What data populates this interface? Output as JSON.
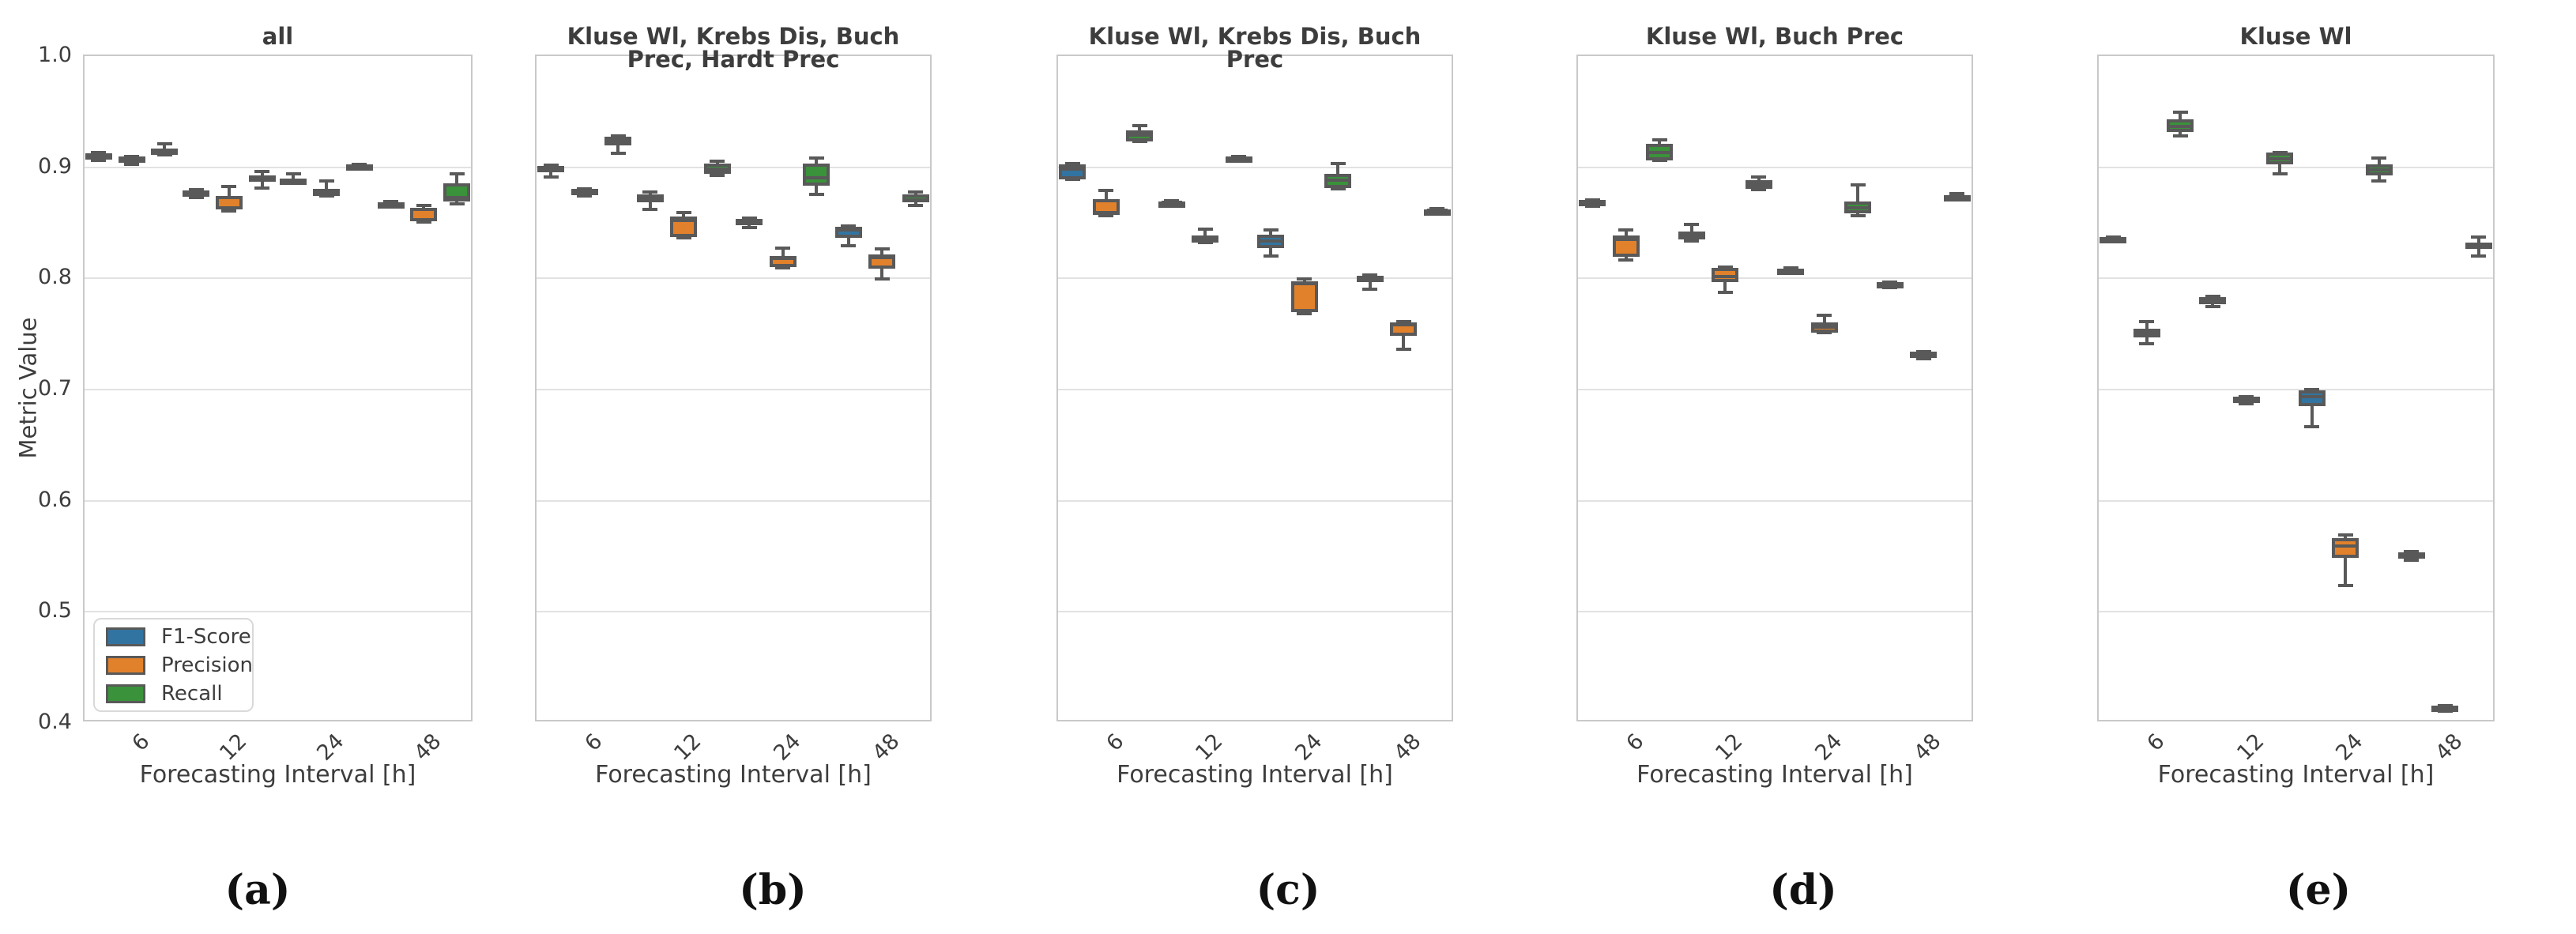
{
  "figure": {
    "ylabel": "Metric Value",
    "xlabel": "Forecasting Interval [h]",
    "yticks": [
      "1.0",
      "0.9",
      "0.8",
      "0.7",
      "0.6",
      "0.5",
      "0.4"
    ],
    "xticks": [
      "6",
      "12",
      "24",
      "48"
    ],
    "ylim": [
      0.4,
      1.0
    ],
    "grid_values": [
      0.9,
      0.8,
      0.7,
      0.6,
      0.5
    ],
    "legend": {
      "entries": [
        "F1-Score",
        "Precision",
        "Recall"
      ],
      "position": "lower-left of panel a"
    },
    "colors": {
      "F1-Score": "#3274a1",
      "Precision": "#e1812c",
      "Recall": "#3a923a",
      "box_edge": "#595959",
      "grid": "#e2e2e2",
      "spine": "#c9c9c9",
      "text": "#3d3d3d"
    }
  },
  "chart_data": [
    {
      "type": "boxplot",
      "id": "a",
      "title": "all",
      "caption": "(a)",
      "categories": [
        "6",
        "12",
        "24",
        "48"
      ],
      "box_format": "[whisker_low, q1, median, q3, whisker_high]",
      "series": [
        {
          "name": "F1-Score",
          "boxes": [
            [
              0.905,
              0.907,
              0.909,
              0.911,
              0.9115
            ],
            [
              0.8715,
              0.8745,
              0.8765,
              0.878,
              0.8785
            ],
            [
              0.884,
              0.8845,
              0.8865,
              0.8885,
              0.893
            ],
            [
              0.863,
              0.864,
              0.8655,
              0.867,
              0.8675
            ]
          ]
        },
        {
          "name": "Precision",
          "boxes": [
            [
              0.9015,
              0.9025,
              0.9045,
              0.908,
              0.9085
            ],
            [
              0.859,
              0.8605,
              0.871,
              0.8725,
              0.881
            ],
            [
              0.8725,
              0.873,
              0.876,
              0.8795,
              0.8865
            ],
            [
              0.8495,
              0.85,
              0.8605,
              0.862,
              0.8645
            ]
          ]
        },
        {
          "name": "Recall",
          "boxes": [
            [
              0.9095,
              0.911,
              0.9125,
              0.9155,
              0.9195
            ],
            [
              0.88,
              0.8865,
              0.888,
              0.8915,
              0.895
            ],
            [
              0.8975,
              0.898,
              0.899,
              0.901,
              0.9015
            ],
            [
              0.8655,
              0.868,
              0.871,
              0.884,
              0.893
            ]
          ]
        }
      ]
    },
    {
      "type": "boxplot",
      "id": "b",
      "title": "Kluse Wl, Krebs Dis, Buch Prec, Hardt Prec",
      "caption": "(b)",
      "categories": [
        "6",
        "12",
        "24",
        "48"
      ],
      "box_format": "[whisker_low, q1, median, q3, whisker_high]",
      "series": [
        {
          "name": "F1-Score",
          "boxes": [
            [
              0.89,
              0.894,
              0.8975,
              0.9,
              0.9005
            ],
            [
              0.861,
              0.867,
              0.87,
              0.874,
              0.876
            ],
            [
              0.844,
              0.847,
              0.85,
              0.852,
              0.8525
            ],
            [
              0.828,
              0.835,
              0.842,
              0.845,
              0.8455
            ]
          ]
        },
        {
          "name": "Precision",
          "boxes": [
            [
              0.8725,
              0.874,
              0.8775,
              0.879,
              0.8795
            ],
            [
              0.835,
              0.836,
              0.851,
              0.854,
              0.858
            ],
            [
              0.808,
              0.809,
              0.8165,
              0.819,
              0.826
            ],
            [
              0.798,
              0.807,
              0.8175,
              0.82,
              0.825
            ]
          ]
        },
        {
          "name": "Recall",
          "boxes": [
            [
              0.911,
              0.918,
              0.922,
              0.926,
              0.9265
            ],
            [
              0.891,
              0.893,
              0.897,
              0.902,
              0.904
            ],
            [
              0.874,
              0.882,
              0.889,
              0.902,
              0.907
            ],
            [
              0.864,
              0.867,
              0.869,
              0.874,
              0.876
            ]
          ]
        }
      ]
    },
    {
      "type": "boxplot",
      "id": "c",
      "title": "Kluse Wl, Krebs Dis, Buch Prec",
      "caption": "(c)",
      "categories": [
        "6",
        "12",
        "24",
        "48"
      ],
      "box_format": "[whisker_low, q1, median, q3, whisker_high]",
      "series": [
        {
          "name": "F1-Score",
          "boxes": [
            [
              0.8875,
              0.888,
              0.897,
              0.9015,
              0.902
            ],
            [
              0.8655,
              0.866,
              0.867,
              0.868,
              0.8685
            ],
            [
              0.819,
              0.826,
              0.832,
              0.838,
              0.842
            ],
            [
              0.789,
              0.795,
              0.799,
              0.801,
              0.8015
            ]
          ]
        },
        {
          "name": "Precision",
          "boxes": [
            [
              0.855,
              0.856,
              0.858,
              0.87,
              0.878
            ],
            [
              0.8305,
              0.831,
              0.833,
              0.837,
              0.843
            ],
            [
              0.767,
              0.768,
              0.794,
              0.796,
              0.798
            ],
            [
              0.735,
              0.747,
              0.757,
              0.759,
              0.7595
            ]
          ]
        },
        {
          "name": "Recall",
          "boxes": [
            [
              0.9215,
              0.922,
              0.9275,
              0.9315,
              0.936
            ],
            [
              0.9055,
              0.906,
              0.9065,
              0.908,
              0.9085
            ],
            [
              0.879,
              0.8795,
              0.887,
              0.893,
              0.902
            ],
            [
              0.8575,
              0.858,
              0.86,
              0.861,
              0.8615
            ]
          ]
        }
      ]
    },
    {
      "type": "boxplot",
      "id": "d",
      "title": "Kluse Wl, Buch Prec",
      "caption": "(d)",
      "categories": [
        "6",
        "12",
        "24",
        "48"
      ],
      "box_format": "[whisker_low, q1, median, q3, whisker_high]",
      "series": [
        {
          "name": "F1-Score",
          "boxes": [
            [
              0.8635,
              0.864,
              0.866,
              0.869,
              0.8695
            ],
            [
              0.832,
              0.834,
              0.837,
              0.841,
              0.847
            ],
            [
              0.803,
              0.8035,
              0.805,
              0.8075,
              0.808
            ],
            [
              0.7905,
              0.791,
              0.793,
              0.795,
              0.7955
            ]
          ]
        },
        {
          "name": "Precision",
          "boxes": [
            [
              0.815,
              0.818,
              0.834,
              0.837,
              0.842
            ],
            [
              0.786,
              0.795,
              0.8,
              0.808,
              0.8085
            ],
            [
              0.7495,
              0.75,
              0.755,
              0.759,
              0.7655
            ],
            [
              0.726,
              0.729,
              0.73,
              0.7325,
              0.733
            ]
          ]
        },
        {
          "name": "Recall",
          "boxes": [
            [
              0.9045,
              0.905,
              0.912,
              0.92,
              0.923
            ],
            [
              0.8785,
              0.879,
              0.883,
              0.887,
              0.89
            ],
            [
              0.855,
              0.857,
              0.862,
              0.8675,
              0.8825
            ],
            [
              0.8705,
              0.871,
              0.872,
              0.8735,
              0.875
            ]
          ]
        }
      ]
    },
    {
      "type": "boxplot",
      "id": "e",
      "title": "Kluse Wl",
      "caption": "(e)",
      "categories": [
        "6",
        "12",
        "24",
        "48"
      ],
      "box_format": "[whisker_low, q1, median, q3, whisker_high]",
      "series": [
        {
          "name": "F1-Score",
          "boxes": [
            [
              0.832,
              0.8325,
              0.834,
              0.8355,
              0.836
            ],
            [
              0.773,
              0.775,
              0.7785,
              0.782,
              0.7825
            ],
            [
              0.665,
              0.684,
              0.692,
              0.698,
              0.6985
            ],
            [
              0.545,
              0.548,
              0.549,
              0.552,
              0.553
            ]
          ]
        },
        {
          "name": "Precision",
          "boxes": [
            [
              0.74,
              0.7455,
              0.749,
              0.753,
              0.76
            ],
            [
              0.686,
              0.688,
              0.69,
              0.692,
              0.6925
            ],
            [
              0.522,
              0.547,
              0.558,
              0.565,
              0.568
            ],
            [
              0.4095,
              0.411,
              0.412,
              0.414,
              0.4145
            ]
          ]
        },
        {
          "name": "Recall",
          "boxes": [
            [
              0.927,
              0.93,
              0.935,
              0.942,
              0.948
            ],
            [
              0.8925,
              0.901,
              0.906,
              0.9115,
              0.912
            ],
            [
              0.886,
              0.891,
              0.896,
              0.901,
              0.907
            ],
            [
              0.819,
              0.825,
              0.828,
              0.831,
              0.836
            ]
          ]
        }
      ]
    }
  ]
}
